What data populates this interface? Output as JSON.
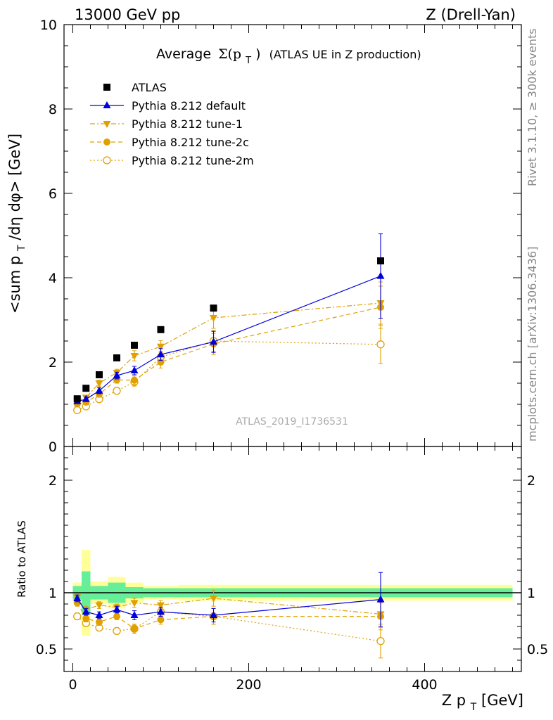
{
  "header": {
    "left": "13000 GeV pp",
    "right": "Z (Drell-Yan)"
  },
  "side_labels": {
    "rivet": "Rivet 3.1.10, ≥ 300k events",
    "mcplots": "mcplots.cern.ch [arXiv:1306.3436]"
  },
  "watermark": "ATLAS_2019_I1736531",
  "colors": {
    "data": "#000000",
    "default": "#0000dd",
    "orange": "#e0a000",
    "band_inner": "#66ee99",
    "band_outer": "#ffff99"
  },
  "chart_data": [
    {
      "type": "line",
      "title": "Average Σ(p_T) (ATLAS UE in Z production)",
      "title_main": "Average",
      "title_sigma": "Σ(p",
      "title_sub": "T",
      "title_close": ")",
      "title_rest": "(ATLAS UE in Z production)",
      "ylabel": "<sum p_T/dη dφ> [GeV]",
      "ylabel_parts": [
        "<sum p",
        "T",
        "/dη dφ> [GeV]"
      ],
      "xlim": [
        -10,
        510
      ],
      "ylim": [
        0,
        10
      ],
      "y_ticks": [
        0,
        2,
        4,
        6,
        8,
        10
      ],
      "y_tick_labels": [
        "0",
        "2",
        "4",
        "6",
        "8",
        "10"
      ],
      "legend_position": "top-left",
      "x": [
        5,
        15,
        30,
        50,
        70,
        100,
        160,
        350
      ],
      "series": [
        {
          "name": "ATLAS",
          "key": "data",
          "marker": "square",
          "values": [
            1.13,
            1.38,
            1.7,
            2.1,
            2.4,
            2.77,
            3.28,
            4.4
          ]
        },
        {
          "name": "Pythia 8.212 default",
          "key": "default",
          "marker": "triangle-up",
          "dash": "solid",
          "values": [
            1.07,
            1.12,
            1.32,
            1.68,
            1.8,
            2.18,
            2.48,
            4.04
          ],
          "errors": [
            0.05,
            0.05,
            0.07,
            0.08,
            0.1,
            0.14,
            0.25,
            1.0
          ]
        },
        {
          "name": "Pythia 8.212 tune-1",
          "key": "tune1",
          "marker": "triangle-down",
          "dash": "dashdot",
          "values": [
            1.09,
            1.16,
            1.5,
            1.75,
            2.15,
            2.37,
            3.05,
            3.4
          ],
          "errors": [
            0.05,
            0.05,
            0.07,
            0.08,
            0.12,
            0.14,
            0.25,
            0.5
          ]
        },
        {
          "name": "Pythia 8.212 tune-2c",
          "key": "tune2c",
          "marker": "circle",
          "dash": "dash",
          "values": [
            1.01,
            1.05,
            1.24,
            1.58,
            1.57,
            2.0,
            2.43,
            3.3
          ],
          "errors": [
            0.05,
            0.05,
            0.07,
            0.08,
            0.1,
            0.14,
            0.25,
            0.5
          ]
        },
        {
          "name": "Pythia 8.212 tune-2m",
          "key": "tune2m",
          "marker": "open-circle",
          "dash": "dot",
          "values": [
            0.86,
            0.95,
            1.12,
            1.32,
            1.53,
            2.12,
            2.5,
            2.42
          ],
          "errors": [
            0.05,
            0.05,
            0.07,
            0.08,
            0.1,
            0.14,
            0.25,
            0.45
          ]
        }
      ]
    },
    {
      "type": "line",
      "title": "Ratio panel",
      "ylabel": "Ratio to ATLAS",
      "xlabel": "Z p_T [GeV]",
      "xlabel_parts": [
        "Z p",
        "T",
        " [GeV]"
      ],
      "xlim": [
        -10,
        510
      ],
      "ylim": [
        0.3,
        2.3
      ],
      "x_ticks": [
        0,
        200,
        400
      ],
      "x_tick_labels": [
        "0",
        "200",
        "400"
      ],
      "y_ticks": [
        0.5,
        1,
        2
      ],
      "y_tick_labels": [
        "0.5",
        "1",
        "2"
      ],
      "reference": 1,
      "bin_edges": [
        0,
        10,
        20,
        40,
        60,
        80,
        120,
        200,
        500
      ],
      "band_inner": [
        0.06,
        0.19,
        0.06,
        0.09,
        0.05,
        0.04,
        0.04,
        0.04
      ],
      "band_outer": [
        0.09,
        0.38,
        0.1,
        0.14,
        0.09,
        0.06,
        0.07,
        0.07
      ],
      "x": [
        5,
        15,
        30,
        50,
        70,
        100,
        160,
        350
      ],
      "series": [
        {
          "name": "Pythia 8.212 default",
          "key": "default",
          "values": [
            0.95,
            0.83,
            0.8,
            0.85,
            0.8,
            0.83,
            0.8,
            0.94
          ],
          "errors": [
            0.03,
            0.03,
            0.03,
            0.03,
            0.04,
            0.04,
            0.06,
            0.24
          ]
        },
        {
          "name": "Pythia 8.212 tune-1",
          "key": "tune1",
          "values": [
            0.96,
            0.85,
            0.89,
            0.87,
            0.91,
            0.89,
            0.95,
            0.81
          ],
          "errors": [
            0.03,
            0.03,
            0.03,
            0.03,
            0.04,
            0.04,
            0.07,
            0.12
          ]
        },
        {
          "name": "Pythia 8.212 tune-2c",
          "key": "tune2c",
          "values": [
            0.91,
            0.77,
            0.74,
            0.79,
            0.68,
            0.76,
            0.79,
            0.79
          ],
          "errors": [
            0.03,
            0.03,
            0.03,
            0.03,
            0.04,
            0.04,
            0.07,
            0.12
          ]
        },
        {
          "name": "Pythia 8.212 tune-2m",
          "key": "tune2m",
          "values": [
            0.79,
            0.73,
            0.69,
            0.66,
            0.68,
            0.83,
            0.79,
            0.57
          ],
          "errors": [
            0.03,
            0.03,
            0.03,
            0.03,
            0.04,
            0.04,
            0.07,
            0.15
          ]
        }
      ]
    }
  ]
}
